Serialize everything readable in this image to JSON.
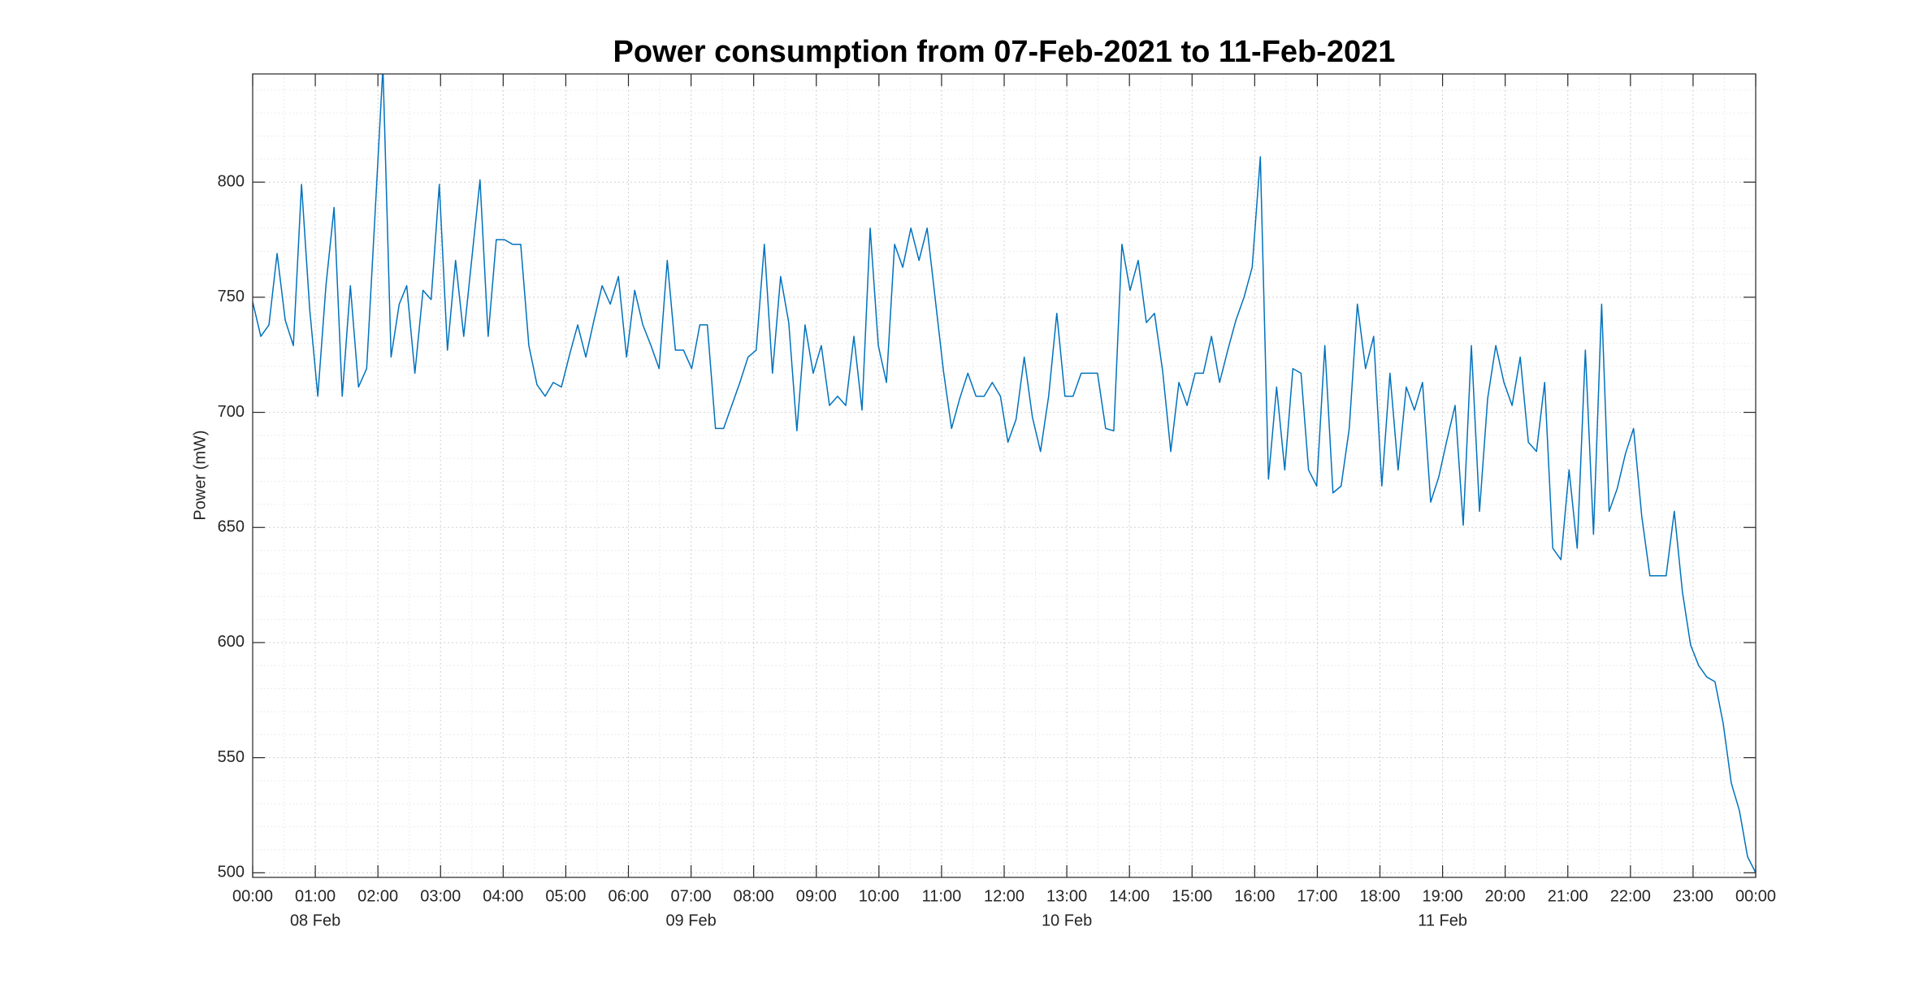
{
  "chart_data": {
    "type": "line",
    "title": "Power consumption from 07-Feb-2021 to 11-Feb-2021",
    "y_label": "Power (mW)",
    "x": [
      0,
      0.13,
      0.26,
      0.39,
      0.52,
      0.65,
      0.78,
      0.91,
      1.04,
      1.17,
      1.3,
      1.43,
      1.56,
      1.69,
      1.82,
      1.95,
      2.08,
      2.21,
      2.34,
      2.46,
      2.59,
      2.72,
      2.85,
      2.98,
      3.11,
      3.24,
      3.37,
      3.5,
      3.63,
      3.76,
      3.89,
      4.02,
      4.15,
      4.28,
      4.41,
      4.54,
      4.67,
      4.8,
      4.93,
      5.06,
      5.19,
      5.32,
      5.45,
      5.58,
      5.71,
      5.84,
      5.97,
      6.1,
      6.23,
      6.36,
      6.49,
      6.62,
      6.75,
      6.88,
      7.01,
      7.14,
      7.26,
      7.39,
      7.52,
      7.65,
      7.78,
      7.91,
      8.04,
      8.17,
      8.3,
      8.43,
      8.56,
      8.69,
      8.82,
      8.95,
      9.08,
      9.21,
      9.34,
      9.47,
      9.6,
      9.73,
      9.86,
      9.99,
      10.12,
      10.25,
      10.38,
      10.51,
      10.64,
      10.77,
      10.9,
      11.03,
      11.16,
      11.29,
      11.42,
      11.55,
      11.68,
      11.81,
      11.94,
      12.06,
      12.19,
      12.32,
      12.45,
      12.58,
      12.71,
      12.84,
      12.97,
      13.1,
      13.23,
      13.36,
      13.49,
      13.62,
      13.75,
      13.88,
      14.01,
      14.14,
      14.27,
      14.4,
      14.53,
      14.66,
      14.79,
      14.92,
      15.05,
      15.18,
      15.31,
      15.44,
      15.57,
      15.7,
      15.83,
      15.96,
      16.09,
      16.22,
      16.35,
      16.48,
      16.61,
      16.74,
      16.86,
      16.99,
      17.12,
      17.25,
      17.38,
      17.51,
      17.64,
      17.77,
      17.9,
      18.03,
      18.16,
      18.29,
      18.42,
      18.55,
      18.68,
      18.81,
      18.94,
      19.07,
      19.2,
      19.33,
      19.46,
      19.59,
      19.72,
      19.85,
      19.98,
      20.11,
      20.24,
      20.37,
      20.5,
      20.63,
      20.76,
      20.89,
      21.02,
      21.15,
      21.28,
      21.41,
      21.54,
      21.66,
      21.79,
      21.92,
      22.05,
      22.18,
      22.31,
      22.44,
      22.57,
      22.7,
      22.83,
      22.96,
      23.09,
      23.22,
      23.35,
      23.48,
      23.61,
      23.74,
      23.87,
      24.0
    ],
    "series": [
      {
        "color": "#0072BD",
        "values": [
          748,
          733,
          738,
          769,
          740,
          729,
          799,
          745,
          707,
          755,
          789,
          707,
          755,
          711,
          719,
          784,
          850,
          724,
          747,
          755,
          717,
          753,
          749,
          799,
          727,
          766,
          733,
          767,
          801,
          733,
          775,
          775,
          773,
          773,
          729,
          712,
          707,
          713,
          711,
          725,
          738,
          724,
          740,
          755,
          747,
          759,
          724,
          753,
          738,
          729,
          719,
          766,
          727,
          727,
          719,
          738,
          738,
          693,
          693,
          703,
          713,
          724,
          727,
          773,
          717,
          759,
          739,
          692,
          738,
          717,
          729,
          703,
          707,
          703,
          733,
          701,
          780,
          729,
          713,
          773,
          763,
          780,
          766,
          780,
          749,
          718,
          693,
          706,
          717,
          707,
          707,
          713,
          707,
          687,
          697,
          724,
          698,
          683,
          707,
          743,
          707,
          707,
          717,
          717,
          717,
          693,
          692,
          773,
          753,
          766,
          739,
          743,
          718,
          683,
          713,
          703,
          717,
          717,
          733,
          713,
          727,
          740,
          750,
          763,
          811,
          671,
          711,
          675,
          719,
          717,
          675,
          668,
          729,
          665,
          668,
          693,
          747,
          719,
          733,
          668,
          717,
          675,
          711,
          701,
          713,
          661,
          672,
          688,
          703,
          651,
          729,
          657,
          706,
          729,
          713,
          703,
          724,
          687,
          683,
          713,
          641,
          636,
          675,
          641,
          727,
          647,
          747,
          657,
          667,
          682,
          693,
          655,
          629,
          629,
          629,
          657,
          622,
          599,
          590,
          585,
          583,
          565,
          539,
          527,
          507,
          500
        ]
      }
    ],
    "xlim": [
      0,
      24
    ],
    "xticks": [
      {
        "value": 0,
        "label": "00:00"
      },
      {
        "value": 1,
        "label": "01:00"
      },
      {
        "value": 2,
        "label": "02:00"
      },
      {
        "value": 3,
        "label": "03:00"
      },
      {
        "value": 4,
        "label": "04:00"
      },
      {
        "value": 5,
        "label": "05:00"
      },
      {
        "value": 6,
        "label": "06:00"
      },
      {
        "value": 7,
        "label": "07:00"
      },
      {
        "value": 8,
        "label": "08:00"
      },
      {
        "value": 9,
        "label": "09:00"
      },
      {
        "value": 10,
        "label": "10:00"
      },
      {
        "value": 11,
        "label": "11:00"
      },
      {
        "value": 12,
        "label": "12:00"
      },
      {
        "value": 13,
        "label": "13:00"
      },
      {
        "value": 14,
        "label": "14:00"
      },
      {
        "value": 15,
        "label": "15:00"
      },
      {
        "value": 16,
        "label": "16:00"
      },
      {
        "value": 17,
        "label": "17:00"
      },
      {
        "value": 18,
        "label": "18:00"
      },
      {
        "value": 19,
        "label": "19:00"
      },
      {
        "value": 20,
        "label": "20:00"
      },
      {
        "value": 21,
        "label": "21:00"
      },
      {
        "value": 22,
        "label": "22:00"
      },
      {
        "value": 23,
        "label": "23:00"
      },
      {
        "value": 24,
        "label": "00:00"
      }
    ],
    "xtick_date_labels": [
      {
        "value": 1,
        "label": "08 Feb"
      },
      {
        "value": 7,
        "label": "09 Feb"
      },
      {
        "value": 13,
        "label": "10 Feb"
      },
      {
        "value": 19,
        "label": "11 Feb"
      }
    ],
    "ylim": [
      498,
      847
    ],
    "yticks": [
      500,
      550,
      600,
      650,
      700,
      750,
      800
    ],
    "grid": true,
    "minor_grid": true
  }
}
